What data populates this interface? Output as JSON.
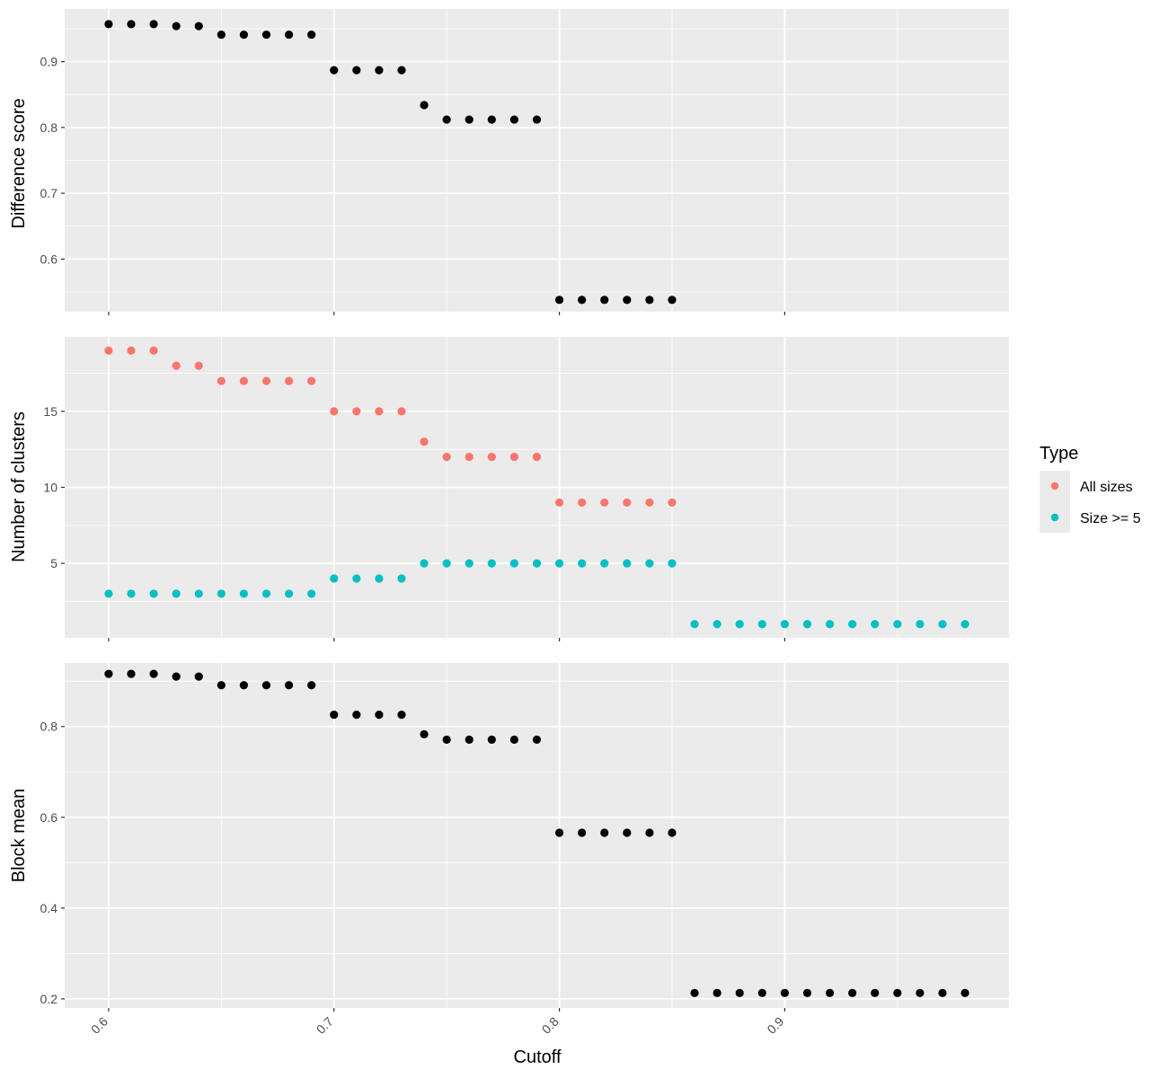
{
  "chart_data": {
    "type": "scatter",
    "xlabel": "Cutoff",
    "x_ticks": [
      "0.6",
      "0.7",
      "0.8",
      "0.9"
    ],
    "x_tick_values": [
      0.6,
      0.7,
      0.8,
      0.9
    ],
    "xlim": [
      0.5805,
      0.9995
    ],
    "legend": {
      "title": "Type",
      "position": "right",
      "entries": [
        {
          "label": "All sizes",
          "color": "#F8766D"
        },
        {
          "label": "Size >= 5",
          "color": "#00BFC4"
        }
      ]
    },
    "colors": {
      "panel_bg": "#EBEBEB",
      "grid": "#FFFFFF",
      "default_point": "#000000"
    },
    "panels": [
      {
        "ylabel": "Difference score",
        "ylim": [
          0.52,
          0.98
        ],
        "y_ticks": [
          "0.6",
          "0.7",
          "0.8",
          "0.9"
        ],
        "y_tick_values": [
          0.6,
          0.7,
          0.8,
          0.9
        ],
        "grid": true,
        "series": [
          {
            "color": "#000000",
            "x": [
              0.6,
              0.61,
              0.62,
              0.63,
              0.64,
              0.65,
              0.66,
              0.67,
              0.68,
              0.69,
              0.7,
              0.71,
              0.72,
              0.73,
              0.74,
              0.75,
              0.76,
              0.77,
              0.78,
              0.79,
              0.8,
              0.81,
              0.82,
              0.83,
              0.84,
              0.85
            ],
            "y": [
              0.957,
              0.957,
              0.957,
              0.954,
              0.954,
              0.941,
              0.941,
              0.941,
              0.941,
              0.941,
              0.887,
              0.887,
              0.887,
              0.887,
              0.834,
              0.812,
              0.812,
              0.812,
              0.812,
              0.812,
              0.538,
              0.538,
              0.538,
              0.538,
              0.538,
              0.538
            ]
          }
        ]
      },
      {
        "ylabel": "Number of clusters",
        "ylim": [
          0.1,
          19.9
        ],
        "y_ticks": [
          "5",
          "10",
          "15"
        ],
        "y_tick_values": [
          5,
          10,
          15
        ],
        "grid": true,
        "series": [
          {
            "name": "All sizes",
            "color": "#F8766D",
            "x": [
              0.6,
              0.61,
              0.62,
              0.63,
              0.64,
              0.65,
              0.66,
              0.67,
              0.68,
              0.69,
              0.7,
              0.71,
              0.72,
              0.73,
              0.74,
              0.75,
              0.76,
              0.77,
              0.78,
              0.79,
              0.8,
              0.81,
              0.82,
              0.83,
              0.84,
              0.85
            ],
            "y": [
              19,
              19,
              19,
              18,
              18,
              17,
              17,
              17,
              17,
              17,
              15,
              15,
              15,
              15,
              13,
              12,
              12,
              12,
              12,
              12,
              9,
              9,
              9,
              9,
              9,
              9
            ]
          },
          {
            "name": "Size >= 5",
            "color": "#00BFC4",
            "x": [
              0.6,
              0.61,
              0.62,
              0.63,
              0.64,
              0.65,
              0.66,
              0.67,
              0.68,
              0.69,
              0.7,
              0.71,
              0.72,
              0.73,
              0.74,
              0.75,
              0.76,
              0.77,
              0.78,
              0.79,
              0.8,
              0.81,
              0.82,
              0.83,
              0.84,
              0.85,
              0.86,
              0.87,
              0.88,
              0.89,
              0.9,
              0.91,
              0.92,
              0.93,
              0.94,
              0.95,
              0.96,
              0.97,
              0.98
            ],
            "y": [
              3,
              3,
              3,
              3,
              3,
              3,
              3,
              3,
              3,
              3,
              4,
              4,
              4,
              4,
              5,
              5,
              5,
              5,
              5,
              5,
              5,
              5,
              5,
              5,
              5,
              5,
              1,
              1,
              1,
              1,
              1,
              1,
              1,
              1,
              1,
              1,
              1,
              1,
              1
            ]
          }
        ]
      },
      {
        "ylabel": "Block mean",
        "ylim": [
          0.18,
          0.94
        ],
        "y_ticks": [
          "0.2",
          "0.4",
          "0.6",
          "0.8"
        ],
        "y_tick_values": [
          0.2,
          0.4,
          0.6,
          0.8
        ],
        "grid": true,
        "series": [
          {
            "color": "#000000",
            "x": [
              0.6,
              0.61,
              0.62,
              0.63,
              0.64,
              0.65,
              0.66,
              0.67,
              0.68,
              0.69,
              0.7,
              0.71,
              0.72,
              0.73,
              0.74,
              0.75,
              0.76,
              0.77,
              0.78,
              0.79,
              0.8,
              0.81,
              0.82,
              0.83,
              0.84,
              0.85,
              0.86,
              0.87,
              0.88,
              0.89,
              0.9,
              0.91,
              0.92,
              0.93,
              0.94,
              0.95,
              0.96,
              0.97,
              0.98
            ],
            "y": [
              0.916,
              0.916,
              0.916,
              0.91,
              0.91,
              0.891,
              0.891,
              0.891,
              0.891,
              0.891,
              0.826,
              0.826,
              0.826,
              0.826,
              0.783,
              0.771,
              0.771,
              0.771,
              0.771,
              0.771,
              0.566,
              0.566,
              0.566,
              0.566,
              0.566,
              0.566,
              0.213,
              0.213,
              0.213,
              0.213,
              0.213,
              0.213,
              0.213,
              0.213,
              0.213,
              0.213,
              0.213,
              0.213,
              0.213
            ]
          }
        ]
      }
    ]
  }
}
